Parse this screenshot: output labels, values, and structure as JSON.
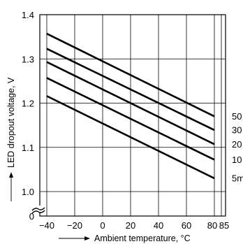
{
  "chart_data": {
    "type": "line",
    "title": "",
    "xlabel": "Ambient temperature, °C",
    "ylabel": "LED dropout voltage, V",
    "xlim": [
      -45,
      88
    ],
    "ylim": [
      1.0,
      1.4
    ],
    "y_zero_label": "0",
    "x_ticks": [
      {
        "value": -40,
        "label": "−40"
      },
      {
        "value": -20,
        "label": "−20"
      },
      {
        "value": 0,
        "label": "0"
      },
      {
        "value": 20,
        "label": "20"
      },
      {
        "value": 40,
        "label": "40"
      },
      {
        "value": 60,
        "label": "60"
      },
      {
        "value": 80,
        "label": "80"
      },
      {
        "value": 85,
        "label": "85"
      }
    ],
    "y_ticks": [
      {
        "value": 1.0,
        "label": "1.0"
      },
      {
        "value": 1.1,
        "label": "1.1"
      },
      {
        "value": 1.2,
        "label": "1.2"
      },
      {
        "value": 1.3,
        "label": "1.3"
      },
      {
        "value": 1.4,
        "label": "1.4"
      }
    ],
    "grid": true,
    "series": [
      {
        "name": "50",
        "x": [
          -40,
          80
        ],
        "y": [
          1.357,
          1.17
        ]
      },
      {
        "name": "30",
        "x": [
          -40,
          80
        ],
        "y": [
          1.323,
          1.139
        ]
      },
      {
        "name": "20",
        "x": [
          -40,
          80
        ],
        "y": [
          1.293,
          1.107
        ]
      },
      {
        "name": "10",
        "x": [
          -40,
          80
        ],
        "y": [
          1.257,
          1.072
        ]
      },
      {
        "name": "5m",
        "x": [
          -40,
          80
        ],
        "y": [
          1.216,
          1.03
        ]
      }
    ]
  }
}
